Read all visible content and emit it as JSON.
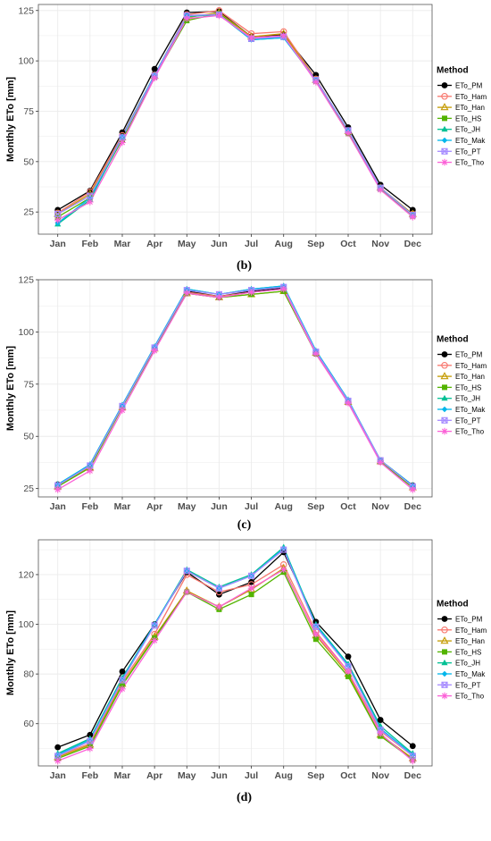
{
  "ylabel": "Monthly ETo [mm]",
  "legend_title": "Method",
  "months": [
    "Jan",
    "Feb",
    "Mar",
    "Apr",
    "May",
    "Jun",
    "Jul",
    "Aug",
    "Sep",
    "Oct",
    "Nov",
    "Dec"
  ],
  "methods": [
    {
      "name": "ETo_PM",
      "color": "#000000",
      "marker": "circle"
    },
    {
      "name": "ETo_Ham",
      "color": "#f8766d",
      "marker": "circle-open"
    },
    {
      "name": "ETo_Han",
      "color": "#c49a00",
      "marker": "triangle-open"
    },
    {
      "name": "ETo_HS",
      "color": "#53b400",
      "marker": "square"
    },
    {
      "name": "ETo_JH",
      "color": "#00c094",
      "marker": "triangle"
    },
    {
      "name": "ETo_Mak",
      "color": "#00b6eb",
      "marker": "diamond"
    },
    {
      "name": "ETo_PT",
      "color": "#a58aff",
      "marker": "square-x"
    },
    {
      "name": "ETo_Tho",
      "color": "#fb61d7",
      "marker": "asterisk"
    }
  ],
  "chart_data": [
    {
      "type": "line",
      "label": "(b)",
      "ylim": [
        14,
        128
      ],
      "yticks": [
        25,
        50,
        75,
        100,
        125
      ],
      "grid": true,
      "legend_position": "right",
      "x": [
        "Jan",
        "Feb",
        "Mar",
        "Apr",
        "May",
        "Jun",
        "Jul",
        "Aug",
        "Sep",
        "Oct",
        "Nov",
        "Dec"
      ],
      "series": [
        {
          "name": "ETo_PM",
          "values": [
            26,
            35.5,
            64.5,
            96,
            124,
            124.5,
            112,
            113,
            93,
            67,
            38.5,
            26
          ]
        },
        {
          "name": "ETo_Ham",
          "values": [
            24.5,
            35,
            63,
            93,
            123,
            125,
            113.5,
            114.5,
            91,
            65,
            37,
            24
          ]
        },
        {
          "name": "ETo_Han",
          "values": [
            24,
            34,
            62,
            92.5,
            121.5,
            124,
            112,
            113.5,
            90.5,
            65,
            37,
            24
          ]
        },
        {
          "name": "ETo_HS",
          "values": [
            22.5,
            32,
            61,
            92,
            120,
            123.5,
            111,
            112,
            90,
            64,
            36.5,
            23
          ]
        },
        {
          "name": "ETo_JH",
          "values": [
            19,
            31,
            62,
            93,
            122,
            123,
            110.5,
            111.5,
            90.5,
            65.5,
            37,
            23.5
          ]
        },
        {
          "name": "ETo_Mak",
          "values": [
            19.5,
            32,
            62.5,
            93,
            122.5,
            123,
            110.5,
            111.5,
            90.5,
            65.5,
            37,
            23.5
          ]
        },
        {
          "name": "ETo_PT",
          "values": [
            24,
            33,
            62,
            92.5,
            122.5,
            123,
            111,
            112,
            90.5,
            65.5,
            37,
            23.5
          ]
        },
        {
          "name": "ETo_Tho",
          "values": [
            21,
            30,
            59.5,
            91.5,
            121,
            122.5,
            111.5,
            112.5,
            89.5,
            64,
            36,
            22.5
          ]
        }
      ]
    },
    {
      "type": "line",
      "label": "(c)",
      "ylim": [
        21,
        125
      ],
      "yticks": [
        25,
        50,
        75,
        100,
        125
      ],
      "grid": true,
      "legend_position": "right",
      "x": [
        "Jan",
        "Feb",
        "Mar",
        "Apr",
        "May",
        "Jun",
        "Jul",
        "Aug",
        "Sep",
        "Oct",
        "Nov",
        "Dec"
      ],
      "series": [
        {
          "name": "ETo_PM",
          "values": [
            27,
            36,
            64.5,
            92.5,
            119.5,
            117,
            119.5,
            121,
            90.5,
            67,
            38.5,
            26.5
          ]
        },
        {
          "name": "ETo_Ham",
          "values": [
            26,
            35.5,
            64,
            92,
            119,
            117,
            119,
            120.5,
            90,
            66.5,
            38,
            25.5
          ]
        },
        {
          "name": "ETo_Han",
          "values": [
            26,
            35,
            64,
            92,
            118.5,
            116.5,
            118,
            119.5,
            90,
            66.5,
            38,
            25.5
          ]
        },
        {
          "name": "ETo_HS",
          "values": [
            26,
            35,
            64,
            92,
            118.5,
            116.5,
            118,
            119.5,
            89.5,
            66.5,
            38,
            25.5
          ]
        },
        {
          "name": "ETo_JH",
          "values": [
            27,
            36.5,
            65,
            93,
            120.5,
            118,
            120.5,
            122,
            91,
            67.5,
            38.5,
            26.5
          ]
        },
        {
          "name": "ETo_Mak",
          "values": [
            27,
            36.5,
            65,
            93,
            120.5,
            118,
            120.5,
            122,
            91,
            67.5,
            38.5,
            26.5
          ]
        },
        {
          "name": "ETo_PT",
          "values": [
            26.5,
            36,
            64.5,
            92.5,
            120,
            118,
            120,
            121.5,
            90.5,
            67,
            38.5,
            26
          ]
        },
        {
          "name": "ETo_Tho",
          "values": [
            24.5,
            33.5,
            62.5,
            91,
            118.5,
            116.5,
            119,
            120.5,
            89.5,
            66,
            37.5,
            24.5
          ]
        }
      ]
    },
    {
      "type": "line",
      "label": "(d)",
      "ylim": [
        43,
        134
      ],
      "yticks": [
        60,
        80,
        100,
        120
      ],
      "grid": true,
      "legend_position": "right",
      "x": [
        "Jan",
        "Feb",
        "Mar",
        "Apr",
        "May",
        "Jun",
        "Jul",
        "Aug",
        "Sep",
        "Oct",
        "Nov",
        "Dec"
      ],
      "series": [
        {
          "name": "ETo_PM",
          "values": [
            50.5,
            55.5,
            81,
            100,
            121,
            112,
            117,
            129,
            101,
            87,
            61.5,
            51
          ]
        },
        {
          "name": "ETo_Ham",
          "values": [
            47,
            52,
            77,
            96,
            120,
            113,
            116,
            124,
            97,
            81,
            57,
            47
          ]
        },
        {
          "name": "ETo_Han",
          "values": [
            46.5,
            51.5,
            76,
            95,
            113.5,
            107,
            114,
            122.5,
            95.5,
            80,
            55.5,
            46
          ]
        },
        {
          "name": "ETo_HS",
          "values": [
            46,
            51,
            75.5,
            94.5,
            113,
            106,
            112,
            121,
            94,
            79,
            55,
            45.5
          ]
        },
        {
          "name": "ETo_JH",
          "values": [
            48,
            54,
            78.5,
            100,
            122,
            115,
            120,
            131,
            100,
            84,
            59,
            48
          ]
        },
        {
          "name": "ETo_Mak",
          "values": [
            47.5,
            53.5,
            78,
            100,
            121.5,
            114.5,
            119.5,
            130.5,
            99.5,
            83.5,
            58,
            47.5
          ]
        },
        {
          "name": "ETo_PT",
          "values": [
            47,
            53,
            77.5,
            99.5,
            121.5,
            114.5,
            119.5,
            130,
            99,
            83,
            57.5,
            47
          ]
        },
        {
          "name": "ETo_Tho",
          "values": [
            45,
            50,
            74,
            93.5,
            113,
            107,
            114.5,
            122,
            96,
            81,
            56,
            45
          ]
        }
      ]
    }
  ]
}
